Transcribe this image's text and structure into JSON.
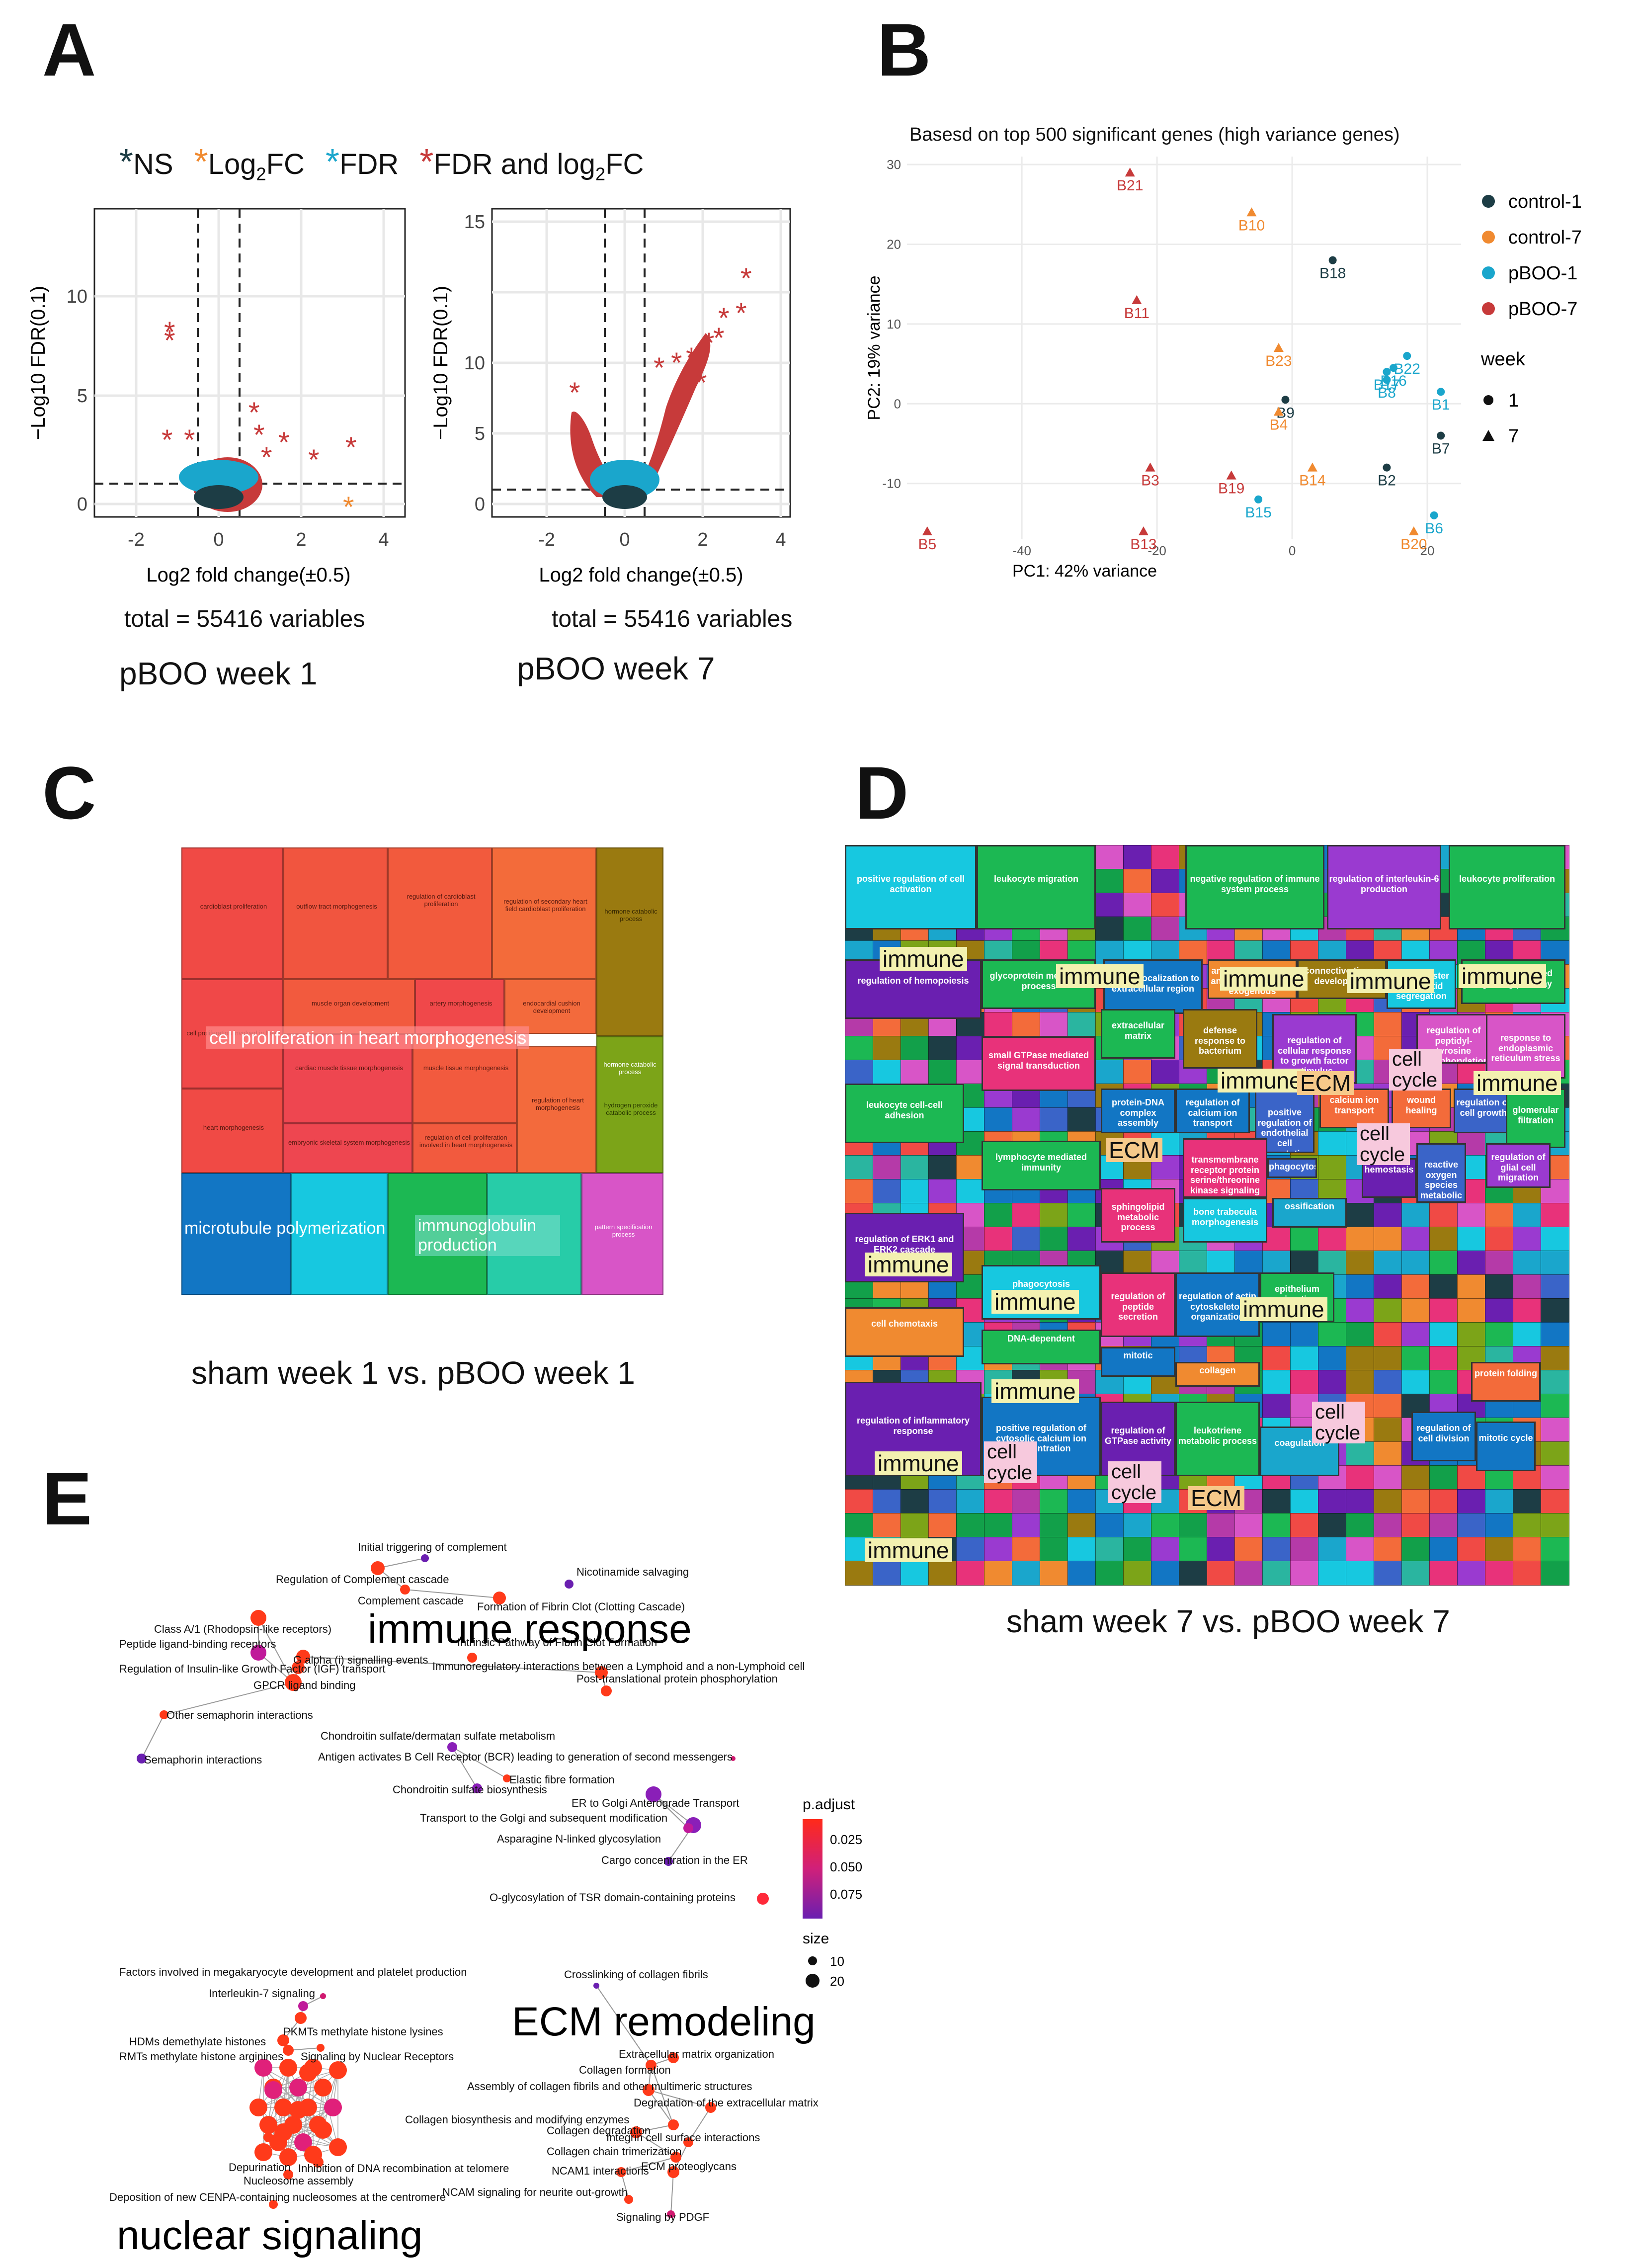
{
  "panels": {
    "a": "A",
    "b": "B",
    "c": "C",
    "d": "D",
    "e": "E"
  },
  "panelA": {
    "legend": {
      "ns": "NS",
      "log2fc": "Log",
      "log2fc_sub": "2",
      "log2fc_tail": "FC",
      "fdr": "FDR",
      "both": "FDR and log",
      "both_sub": "2",
      "both_tail": "FC"
    },
    "ylabel": "−Log10 FDR(0.1)",
    "xlabel": "Log2 fold change(±0.5)",
    "plots": [
      {
        "title": "pBOO week 1",
        "total": "total = 55416 variables",
        "xticks": [
          "-2",
          "0",
          "2",
          "4"
        ],
        "yticks": [
          "0",
          "5",
          "10"
        ]
      },
      {
        "title": "pBOO week 7",
        "total": "total = 55416 variables",
        "xticks": [
          "-2",
          "0",
          "2",
          "4"
        ],
        "yticks": [
          "0",
          "5",
          "10",
          "15"
        ]
      }
    ],
    "colors": {
      "ns": "#1d3d45",
      "log2fc": "#f08a30",
      "fdr": "#1aa6cc",
      "both": "#c73a3a"
    }
  },
  "panelB": {
    "chart_data": {
      "type": "scatter",
      "title": "Basesd on top 500 significant genes (high variance genes)",
      "xlabel": "PC1: 42% variance",
      "ylabel": "PC2: 19% variance",
      "xlim": [
        -57,
        25
      ],
      "ylim": [
        -17,
        31
      ],
      "xticks": [
        "-40",
        "-20",
        "0",
        "20"
      ],
      "yticks": [
        "-10",
        "0",
        "10",
        "20",
        "30"
      ],
      "legend_group": [
        {
          "name": "control-1",
          "color": "#1d3d45"
        },
        {
          "name": "control-7",
          "color": "#f08a30"
        },
        {
          "name": "pBOO-1",
          "color": "#1aa6cc"
        },
        {
          "name": "pBOO-7",
          "color": "#c73a3a"
        }
      ],
      "legend_week_title": "week",
      "legend_week": [
        {
          "name": "1",
          "shape": "circle"
        },
        {
          "name": "7",
          "shape": "triangle"
        }
      ],
      "points": [
        {
          "label": "B21",
          "x": -24,
          "y": 29,
          "group": "pBOO-7",
          "shape": "triangle"
        },
        {
          "label": "B10",
          "x": -6,
          "y": 24,
          "group": "control-7",
          "shape": "triangle"
        },
        {
          "label": "B18",
          "x": 6,
          "y": 18,
          "group": "control-1",
          "shape": "circle"
        },
        {
          "label": "B11",
          "x": -23,
          "y": 13,
          "group": "pBOO-7",
          "shape": "triangle"
        },
        {
          "label": "B23",
          "x": -2,
          "y": 7,
          "group": "control-7",
          "shape": "triangle"
        },
        {
          "label": "B22",
          "x": 17,
          "y": 6,
          "group": "pBOO-1",
          "shape": "circle"
        },
        {
          "label": "B16",
          "x": 15,
          "y": 4.5,
          "group": "pBOO-1",
          "shape": "circle"
        },
        {
          "label": "B17",
          "x": 14,
          "y": 4,
          "group": "pBOO-1",
          "shape": "circle"
        },
        {
          "label": "B8",
          "x": 14,
          "y": 3,
          "group": "pBOO-1",
          "shape": "circle"
        },
        {
          "label": "B1",
          "x": 22,
          "y": 1.5,
          "group": "pBOO-1",
          "shape": "circle"
        },
        {
          "label": "B9",
          "x": -1,
          "y": 0.5,
          "group": "control-1",
          "shape": "circle"
        },
        {
          "label": "B4",
          "x": -2,
          "y": -1,
          "group": "control-7",
          "shape": "triangle"
        },
        {
          "label": "B7",
          "x": 22,
          "y": -4,
          "group": "control-1",
          "shape": "circle"
        },
        {
          "label": "B14",
          "x": 3,
          "y": -8,
          "group": "control-7",
          "shape": "triangle"
        },
        {
          "label": "B2",
          "x": 14,
          "y": -8,
          "group": "control-1",
          "shape": "circle"
        },
        {
          "label": "B3",
          "x": -21,
          "y": -8,
          "group": "pBOO-7",
          "shape": "triangle"
        },
        {
          "label": "B19",
          "x": -9,
          "y": -9,
          "group": "pBOO-7",
          "shape": "triangle"
        },
        {
          "label": "B15",
          "x": -5,
          "y": -12,
          "group": "pBOO-1",
          "shape": "circle"
        },
        {
          "label": "B6",
          "x": 21,
          "y": -14,
          "group": "pBOO-1",
          "shape": "circle"
        },
        {
          "label": "B5",
          "x": -54,
          "y": -16,
          "group": "pBOO-7",
          "shape": "triangle"
        },
        {
          "label": "B13",
          "x": -22,
          "y": -16,
          "group": "pBOO-7",
          "shape": "triangle"
        },
        {
          "label": "B20",
          "x": 18,
          "y": -16,
          "group": "control-7",
          "shape": "triangle"
        }
      ]
    }
  },
  "panelC": {
    "caption": "sham week 1 vs. pBOO week 1",
    "big": {
      "heart": "cell proliferation in heart morphogenesis",
      "micro": "microtubule polymerization",
      "immuno": "immunoglobulin production"
    },
    "small": [
      "cardioblast proliferation",
      "outflow tract morphogenesis",
      "regulation of cardioblast proliferation",
      "regulation of secondary heart field cardioblast proliferation",
      "muscle organ development",
      "artery morphogenesis",
      "endocardial cushion development",
      "cardiac muscle tissue morphogenesis",
      "muscle tissue morphogenesis",
      "heart morphogenesis",
      "embryonic skeletal system morphogenesis",
      "regulation of cell proliferation involved in heart morphogenesis",
      "regulation of heart morphogenesis",
      "hormone catabolic process",
      "hormone catabolic process",
      "hydrogen peroxide catabolic process",
      "pattern specification process",
      "cell proliferation involved in heart"
    ]
  },
  "panelD": {
    "caption": "sham week 7 vs. pBOO week 7",
    "terms": [
      "positive regulation of cell activation",
      "leukocyte migration",
      "negative regulation of immune system process",
      "regulation of interleukin-6 production",
      "leukocyte proliferation",
      "regulation of hemopoiesis",
      "glycoprotein metabolic process",
      "protein localization to extracellular region",
      "antigen processing and presentation of exogenous",
      "connective tissue development",
      "mitotic sister chromatid segregation",
      "cytokine-mediated signaling pathway",
      "extracellular matrix",
      "defense response to bacterium",
      "regulation of cellular response to growth factor stimulus",
      "regulation of peptidyl-tyrosine phosphorylation",
      "response to endoplasmic reticulum stress",
      "small GTPase mediated signal transduction",
      "leukocyte cell-cell adhesion",
      "protein-DNA complex assembly",
      "regulation of calcium ion transport",
      "positive regulation of endothelial cell apoptotic process",
      "calcium ion transport",
      "wound healing",
      "regulation of cell growth",
      "glomerular filtration",
      "lymphocyte mediated immunity",
      "transmembrane receptor protein serine/threonine kinase signaling pathway",
      "phagocytosis",
      "hemostasis",
      "reactive oxygen species metabolic process",
      "regulation of glial cell migration",
      "regulation of ERK1 and ERK2 cascade",
      "sphingolipid metabolic process",
      "bone trabecula morphogenesis",
      "ossification",
      "regulation of peptide secretion",
      "phagocytosis",
      "regulation of actin cytoskeleton organization",
      "epithelium migration",
      "cell chemotaxis",
      "DNA-dependent",
      "mitotic",
      "collagen",
      "protein folding",
      "regulation of inflammatory response",
      "positive regulation of cytosolic calcium ion concentration",
      "regulation of GTPase activity",
      "leukotriene metabolic process",
      "coagulation",
      "regulation of cell division",
      "mitotic cycle"
    ],
    "tags": {
      "immune": "immune",
      "ecm": "ECM",
      "cellcycle": "cell cycle"
    }
  },
  "panelE": {
    "clusters": {
      "immune": "immune response",
      "ecm": "ECM remodeling",
      "nuclear": "nuclear signaling"
    },
    "legend": {
      "title": "p.adjust",
      "ticks": [
        "0.025",
        "0.050",
        "0.075"
      ],
      "size_title": "size",
      "sizes": [
        "10",
        "20"
      ]
    },
    "nodes": [
      "Initial triggering of complement",
      "Regulation of Complement cascade",
      "Nicotinamide salvaging",
      "Complement cascade",
      "Formation of Fibrin Clot (Clotting Cascade)",
      "Class A/1 (Rhodopsin-like receptors)",
      "Peptide ligand-binding receptors",
      "G alpha (i) signalling events",
      "Intrinsic Pathway of Fibrin Clot Formation",
      "Regulation of Insulin-like Growth Factor (IGF) transport",
      "Immunoregulatory interactions between a Lymphoid and a non-Lymphoid cell",
      "Post-translational protein phosphorylation",
      "GPCR ligand binding",
      "Other semaphorin interactions",
      "Semaphorin interactions",
      "Chondroitin sulfate/dermatan sulfate metabolism",
      "Antigen activates B Cell Receptor (BCR) leading to generation of second messengers",
      "Elastic fibre formation",
      "Chondroitin sulfate biosynthesis",
      "ER to Golgi Anterograde Transport",
      "Transport to the Golgi and subsequent modification",
      "Asparagine N-linked glycosylation",
      "Cargo concentration in the ER",
      "O-glycosylation of TSR domain-containing proteins",
      "Factors involved in megakaryocyte development and platelet production",
      "Interleukin-7 signaling",
      "PKMTs methylate histone lysines",
      "HDMs demethylate histones",
      "RMTs methylate histone arginines",
      "Signaling by Nuclear Receptors",
      "Depurination",
      "Inhibition of DNA recombination at telomere",
      "Nucleosome assembly",
      "Deposition of new CENPA-containing nucleosomes at the centromere",
      "Crosslinking of collagen fibrils",
      "Extracellular matrix organization",
      "Collagen formation",
      "Assembly of collagen fibrils and other multimeric structures",
      "Degradation of the extracellular matrix",
      "Collagen biosynthesis and modifying enzymes",
      "Collagen degradation",
      "Integrin cell surface interactions",
      "Collagen chain trimerization",
      "ECM proteoglycans",
      "NCAM1 interactions",
      "NCAM signaling for neurite out-growth",
      "Signaling by PDGF"
    ]
  }
}
